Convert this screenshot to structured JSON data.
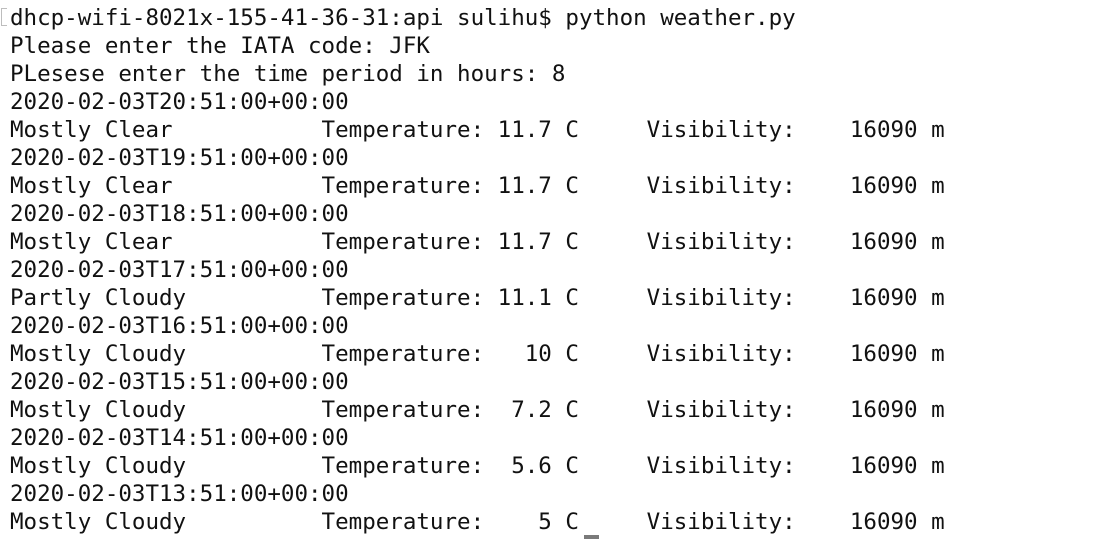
{
  "terminal": {
    "lines": [
      "dhcp-wifi-8021x-155-41-36-31:api sulihu$ python weather.py",
      "Please enter the IATA code: JFK",
      "PLesese enter the time period in hours: 8",
      "2020-02-03T20:51:00+00:00",
      "Mostly Clear           Temperature: 11.7 C     Visibility:    16090 m",
      "2020-02-03T19:51:00+00:00",
      "Mostly Clear           Temperature: 11.7 C     Visibility:    16090 m",
      "2020-02-03T18:51:00+00:00",
      "Mostly Clear           Temperature: 11.7 C     Visibility:    16090 m",
      "2020-02-03T17:51:00+00:00",
      "Partly Cloudy          Temperature: 11.1 C     Visibility:    16090 m",
      "2020-02-03T16:51:00+00:00",
      "Mostly Cloudy          Temperature:   10 C     Visibility:    16090 m",
      "2020-02-03T15:51:00+00:00",
      "Mostly Cloudy          Temperature:  7.2 C     Visibility:    16090 m",
      "2020-02-03T14:51:00+00:00",
      "Mostly Cloudy          Temperature:  5.6 C     Visibility:    16090 m",
      "2020-02-03T13:51:00+00:00",
      "Mostly Cloudy          Temperature:    5 C     Visibility:    16090 m"
    ]
  }
}
